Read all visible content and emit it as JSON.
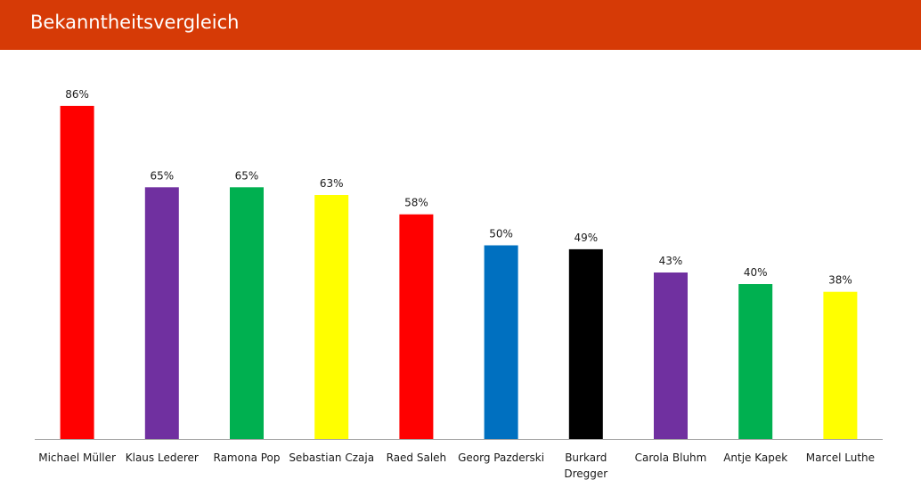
{
  "header": {
    "title": "Bekanntheitsvergleich",
    "background_color": "#d63a06"
  },
  "chart_data": {
    "type": "bar",
    "title": "",
    "xlabel": "",
    "ylabel": "",
    "ylim": [
      0,
      100
    ],
    "grid": false,
    "legend": "none",
    "value_format": "percent",
    "categories": [
      "Michael Müller",
      "Klaus Lederer",
      "Ramona Pop",
      "Sebastian Czaja",
      "Raed Saleh",
      "Georg Pazderski",
      "Burkard Dregger",
      "Carola Bluhm",
      "Antje Kapek",
      "Marcel Luthe"
    ],
    "category_lines": [
      [
        "Michael Müller"
      ],
      [
        "Klaus Lederer"
      ],
      [
        "Ramona Pop"
      ],
      [
        "Sebastian Czaja"
      ],
      [
        "Raed Saleh"
      ],
      [
        "Georg Pazderski"
      ],
      [
        "Burkard",
        "Dregger"
      ],
      [
        "Carola Bluhm"
      ],
      [
        "Antje Kapek"
      ],
      [
        "Marcel Luthe"
      ]
    ],
    "values": [
      86,
      65,
      65,
      63,
      58,
      50,
      49,
      43,
      40,
      38
    ],
    "value_labels": [
      "86%",
      "65%",
      "65%",
      "63%",
      "58%",
      "50%",
      "49%",
      "43%",
      "40%",
      "38%"
    ],
    "colors": [
      "#ff0000",
      "#7030a0",
      "#00b050",
      "#ffff00",
      "#ff0000",
      "#0070c0",
      "#000000",
      "#7030a0",
      "#00b050",
      "#ffff00"
    ],
    "axis_color": "#a6a6a6"
  }
}
